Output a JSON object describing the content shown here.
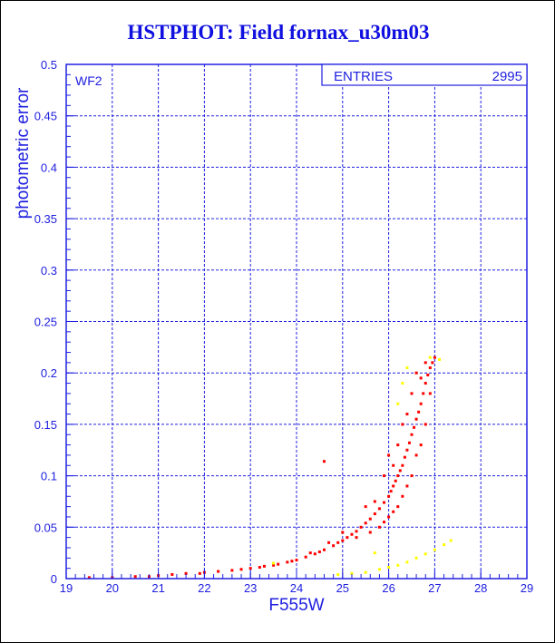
{
  "chart_data": {
    "type": "scatter",
    "title": "HSTPHOT: Field fornax_u30m03",
    "xlabel": "F555W",
    "ylabel": "photometric error",
    "xlim": [
      19,
      29
    ],
    "ylim": [
      0,
      0.5
    ],
    "xticks": [
      "19",
      "20",
      "21",
      "22",
      "23",
      "24",
      "25",
      "26",
      "27",
      "28",
      "29"
    ],
    "yticks": [
      "0",
      "0.05",
      "0.1",
      "0.15",
      "0.2",
      "0.25",
      "0.3",
      "0.35",
      "0.4",
      "0.45",
      "0.5"
    ],
    "grid": true,
    "annotation": "WF2",
    "stats_box": {
      "label": "ENTRIES",
      "value": "2995"
    },
    "colors": {
      "axis": "#2020e0",
      "main": "#ff0000",
      "secondary": "#ffff00"
    },
    "series": [
      {
        "name": "main",
        "color": "#ff0000",
        "points": [
          [
            19.5,
            0.001
          ],
          [
            20.0,
            0.001
          ],
          [
            20.5,
            0.002
          ],
          [
            20.8,
            0.002
          ],
          [
            21.0,
            0.003
          ],
          [
            21.3,
            0.004
          ],
          [
            21.6,
            0.005
          ],
          [
            21.9,
            0.005
          ],
          [
            22.0,
            0.006
          ],
          [
            22.3,
            0.007
          ],
          [
            22.6,
            0.008
          ],
          [
            22.8,
            0.009
          ],
          [
            23.0,
            0.01
          ],
          [
            23.2,
            0.011
          ],
          [
            23.3,
            0.012
          ],
          [
            23.5,
            0.013
          ],
          [
            23.6,
            0.014
          ],
          [
            23.8,
            0.016
          ],
          [
            23.9,
            0.017
          ],
          [
            24.0,
            0.018
          ],
          [
            24.2,
            0.021
          ],
          [
            24.4,
            0.024
          ],
          [
            24.5,
            0.026
          ],
          [
            24.6,
            0.028
          ],
          [
            24.8,
            0.032
          ],
          [
            24.9,
            0.035
          ],
          [
            25.0,
            0.037
          ],
          [
            25.1,
            0.04
          ],
          [
            25.2,
            0.043
          ],
          [
            25.3,
            0.046
          ],
          [
            25.4,
            0.05
          ],
          [
            25.5,
            0.054
          ],
          [
            25.6,
            0.058
          ],
          [
            25.7,
            0.063
          ],
          [
            25.8,
            0.068
          ],
          [
            25.9,
            0.074
          ],
          [
            26.0,
            0.08
          ],
          [
            26.05,
            0.085
          ],
          [
            26.1,
            0.09
          ],
          [
            26.15,
            0.095
          ],
          [
            26.2,
            0.1
          ],
          [
            26.25,
            0.105
          ],
          [
            26.3,
            0.11
          ],
          [
            26.35,
            0.118
          ],
          [
            26.4,
            0.125
          ],
          [
            26.45,
            0.132
          ],
          [
            26.5,
            0.14
          ],
          [
            26.55,
            0.147
          ],
          [
            26.6,
            0.155
          ],
          [
            26.65,
            0.162
          ],
          [
            26.7,
            0.17
          ],
          [
            26.75,
            0.18
          ],
          [
            26.8,
            0.19
          ],
          [
            26.85,
            0.198
          ],
          [
            26.9,
            0.205
          ],
          [
            26.95,
            0.21
          ],
          [
            27.0,
            0.215
          ],
          [
            24.6,
            0.114
          ],
          [
            25.9,
            0.1
          ],
          [
            26.0,
            0.12
          ],
          [
            26.3,
            0.15
          ],
          [
            26.5,
            0.18
          ],
          [
            26.6,
            0.2
          ],
          [
            26.2,
            0.13
          ],
          [
            26.4,
            0.16
          ],
          [
            26.7,
            0.195
          ],
          [
            26.8,
            0.21
          ],
          [
            25.5,
            0.07
          ],
          [
            25.8,
            0.05
          ],
          [
            26.0,
            0.06
          ],
          [
            26.2,
            0.07
          ],
          [
            26.4,
            0.09
          ],
          [
            26.5,
            0.1
          ],
          [
            26.6,
            0.12
          ],
          [
            26.7,
            0.13
          ],
          [
            26.8,
            0.15
          ],
          [
            26.9,
            0.18
          ],
          [
            25.3,
            0.04
          ],
          [
            25.6,
            0.045
          ],
          [
            25.9,
            0.055
          ],
          [
            26.1,
            0.065
          ],
          [
            26.3,
            0.08
          ],
          [
            25.0,
            0.045
          ],
          [
            24.7,
            0.035
          ],
          [
            24.3,
            0.025
          ],
          [
            25.7,
            0.075
          ],
          [
            26.1,
            0.11
          ]
        ]
      },
      {
        "name": "secondary",
        "color": "#ffff00",
        "points": [
          [
            24.9,
            0.004
          ],
          [
            25.2,
            0.005
          ],
          [
            25.5,
            0.006
          ],
          [
            25.8,
            0.009
          ],
          [
            26.0,
            0.011
          ],
          [
            26.2,
            0.013
          ],
          [
            26.4,
            0.016
          ],
          [
            26.6,
            0.02
          ],
          [
            26.8,
            0.024
          ],
          [
            27.0,
            0.028
          ],
          [
            27.2,
            0.033
          ],
          [
            27.35,
            0.037
          ],
          [
            26.4,
            0.205
          ],
          [
            26.2,
            0.17
          ],
          [
            26.3,
            0.19
          ],
          [
            23.5,
            0.015
          ],
          [
            25.7,
            0.025
          ],
          [
            26.9,
            0.215
          ],
          [
            27.1,
            0.213
          ]
        ]
      }
    ]
  }
}
